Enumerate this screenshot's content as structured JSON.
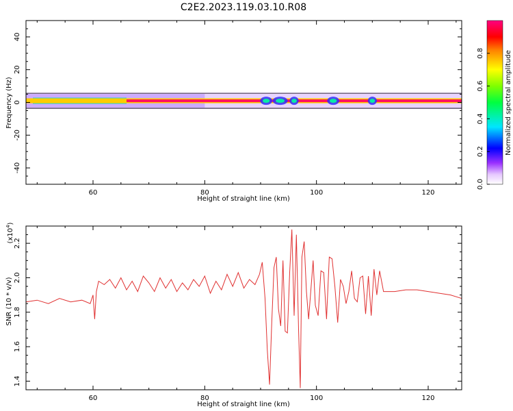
{
  "title": "C2E2.2023.119.03.10.R08",
  "chart_data": [
    {
      "type": "heatmap",
      "xlabel": "Height of straight line (km)",
      "ylabel": "Frequency (Hz)",
      "xlim": [
        48,
        126
      ],
      "ylim": [
        -50,
        50
      ],
      "x_ticks": [
        60,
        80,
        100,
        120
      ],
      "y_ticks": [
        -40,
        -20,
        0,
        20,
        40
      ],
      "colorbar": {
        "label": "Normalized spectral amplitude",
        "range": [
          0,
          1
        ],
        "ticks": [
          0.0,
          0.2,
          0.4,
          0.6,
          0.8
        ],
        "tick_labels": [
          "0.0",
          "0.2",
          "0.4",
          "0.6",
          "0.8"
        ]
      },
      "signal_band": {
        "center_hz": 1,
        "core_half_width_hz": 1.5,
        "halo_half_width_hz": 5
      }
    },
    {
      "type": "line",
      "xlabel": "Height of straight line (km)",
      "ylabel": "SNR (10 * v/v)",
      "y_multiplier_label": "(x10",
      "y_multiplier_exp": "4",
      "y_multiplier_close": ")",
      "xlim": [
        48,
        126
      ],
      "ylim": [
        1.35,
        2.3
      ],
      "x_ticks": [
        60,
        80,
        100,
        120
      ],
      "y_ticks": [
        1.4,
        1.6,
        1.8,
        2.0,
        2.2
      ],
      "y_tick_labels": [
        "1.4",
        "1.6",
        "1.8",
        "2.0",
        "2.2"
      ],
      "color": "#e03030",
      "series": [
        {
          "x": [
            48,
            50,
            52,
            54,
            56,
            58,
            59.5,
            60,
            60.3,
            60.6,
            61,
            62,
            63,
            64,
            65,
            66,
            67,
            68,
            69,
            70,
            71,
            72,
            73,
            74,
            75,
            76,
            77,
            78,
            79,
            80,
            81,
            82,
            83,
            84,
            85,
            86,
            87,
            88,
            89,
            89.8,
            90.3,
            90.8,
            91.2,
            91.6,
            92,
            92.4,
            92.8,
            93.2,
            93.6,
            94,
            94.4,
            94.8,
            95.2,
            95.6,
            96,
            96.4,
            96.8,
            97.1,
            97.4,
            97.8,
            98.2,
            98.6,
            99,
            99.4,
            99.8,
            100.3,
            100.8,
            101.3,
            101.8,
            102.3,
            102.8,
            103.3,
            103.8,
            104.3,
            104.8,
            105.3,
            105.8,
            106.3,
            106.8,
            107.3,
            107.8,
            108.3,
            108.8,
            109.3,
            109.8,
            110.3,
            110.8,
            111.3,
            112,
            114,
            116,
            118,
            120,
            122,
            124,
            126
          ],
          "values": [
            1.86,
            1.87,
            1.85,
            1.88,
            1.86,
            1.87,
            1.85,
            1.9,
            1.76,
            1.92,
            1.98,
            1.96,
            1.99,
            1.94,
            2.0,
            1.93,
            1.98,
            1.92,
            2.01,
            1.97,
            1.92,
            2.0,
            1.94,
            1.99,
            1.92,
            1.97,
            1.93,
            1.99,
            1.95,
            2.01,
            1.91,
            1.98,
            1.93,
            2.02,
            1.95,
            2.03,
            1.94,
            1.99,
            1.96,
            2.02,
            2.09,
            1.88,
            1.58,
            1.38,
            1.74,
            2.06,
            2.12,
            1.82,
            1.72,
            2.1,
            1.69,
            1.68,
            2.03,
            2.28,
            1.78,
            2.25,
            1.7,
            1.36,
            2.12,
            2.21,
            1.92,
            1.76,
            1.93,
            2.1,
            1.84,
            1.78,
            2.04,
            2.03,
            1.76,
            2.12,
            2.11,
            1.95,
            1.74,
            1.99,
            1.95,
            1.85,
            1.92,
            2.04,
            1.88,
            1.86,
            2.0,
            2.01,
            1.79,
            2.01,
            1.78,
            2.05,
            1.9,
            2.04,
            1.92,
            1.92,
            1.93,
            1.93,
            1.92,
            1.91,
            1.9,
            1.88
          ]
        }
      ]
    }
  ]
}
